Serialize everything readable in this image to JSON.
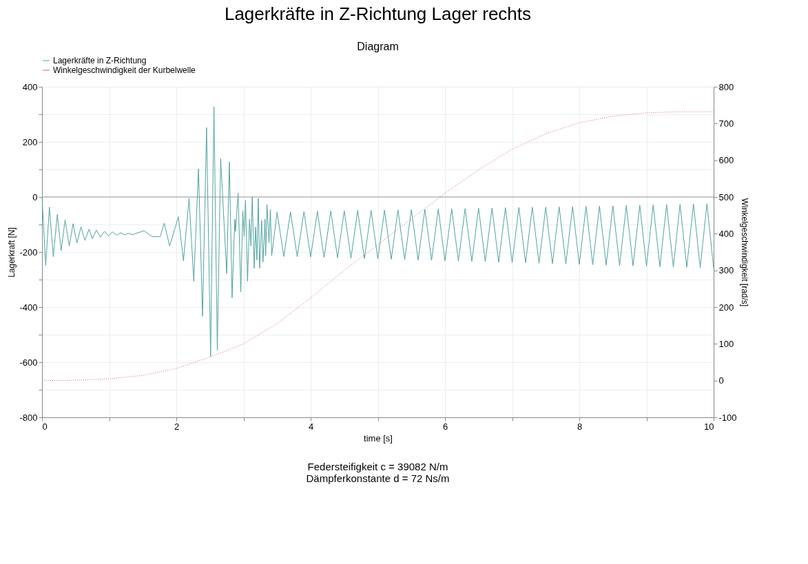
{
  "chart_data": {
    "type": "line",
    "title": "Lagerkräfte in Z-Richtung Lager rechts",
    "subtitle": "Diagram",
    "xlabel": "time [s]",
    "ylabel": "Lagerkraft [N]",
    "y2label": "Winkelgeschwindigkeit [rad/s]",
    "annotations": [
      "Federsteifigkeit c = 39082 N/m",
      "Dämpferkonstante d = 72 Ns/m"
    ],
    "xlim": [
      0,
      10
    ],
    "xticks": [
      0,
      {
        "value": 1,
        "label": null
      },
      2,
      {
        "value": 3,
        "label": null
      },
      4,
      {
        "value": 5,
        "label": null
      },
      6,
      {
        "value": 7,
        "label": null
      },
      8,
      {
        "value": 9,
        "label": null
      },
      10
    ],
    "ylim": [
      -800,
      400
    ],
    "yticks": [
      -800,
      {
        "value": -700,
        "label": null
      },
      -600,
      {
        "value": -500,
        "label": null
      },
      -400,
      {
        "value": -300,
        "label": null
      },
      -200,
      {
        "value": -100,
        "label": null
      },
      0,
      {
        "value": 100,
        "label": null
      },
      200,
      {
        "value": 300,
        "label": null
      },
      400
    ],
    "y2lim": [
      -100,
      800
    ],
    "y2ticks": [
      -100,
      0,
      100,
      200,
      300,
      400,
      500,
      600,
      700,
      800
    ],
    "grid": true,
    "legend": "top left",
    "marker": "none",
    "ref_lines": [
      {
        "axis": "y",
        "value": 0,
        "color": "#999999",
        "line_style": "solid"
      }
    ],
    "series": [
      {
        "name": "Lagerkräfte in Z-Richtung",
        "color": "#4fa3a0",
        "line_style": "solid",
        "x": [
          0,
          0.055,
          0.11,
          0.168,
          0.228,
          0.285,
          0.343,
          0.405,
          0.463,
          0.52,
          0.58,
          0.64,
          0.7,
          0.75,
          0.81,
          0.87,
          0.93,
          0.99,
          1.05,
          1.11,
          1.17,
          1.23,
          1.29,
          1.35,
          1.4,
          1.52,
          1.64,
          1.76,
          1.82,
          1.9,
          1.96,
          2.03,
          2.106,
          2.19,
          2.26,
          2.33,
          2.39,
          2.45,
          2.51,
          2.56,
          2.61,
          2.66,
          2.75,
          2.79,
          2.83,
          2.87,
          2.88,
          2.92,
          2.96,
          2.99,
          3.01,
          3.03,
          3.06,
          3.09,
          3.11,
          3.13,
          3.16,
          3.18,
          3.2,
          3.22,
          3.24,
          3.27,
          3.29,
          3.32,
          3.33,
          3.35,
          3.38,
          3.4,
          3.42,
          3.5,
          3.6,
          3.7,
          3.8,
          3.9,
          4.0,
          4.1,
          4.2,
          4.3,
          4.4,
          4.5,
          4.6,
          4.7,
          4.8,
          4.9,
          5.0,
          5.1,
          5.2,
          5.3,
          5.4,
          5.5,
          5.6,
          5.7,
          5.8,
          5.9,
          6.0,
          6.1,
          6.2,
          6.3,
          6.4,
          6.5,
          6.6,
          6.7,
          6.8,
          6.9,
          7.0,
          7.1,
          7.2,
          7.3,
          7.4,
          7.5,
          7.6,
          7.7,
          7.8,
          7.9,
          8.0,
          8.1,
          8.2,
          8.3,
          8.4,
          8.5,
          8.6,
          8.7,
          8.8,
          8.9,
          9.0,
          9.1,
          9.2,
          9.3,
          9.4,
          9.5,
          9.6,
          9.7,
          9.8,
          9.9,
          10.0
        ],
        "values": [
          0,
          -248,
          -37,
          -217,
          -63,
          -195,
          -84,
          -178,
          -97,
          -167,
          -109,
          -158,
          -117,
          -151,
          -120,
          -146,
          -125,
          -141,
          -127,
          -139,
          -130,
          -137,
          -132,
          -137,
          -132,
          -123,
          -144,
          -144,
          -95,
          -178,
          -130,
          -72,
          -232,
          -5,
          -306,
          102,
          -433,
          252,
          -579,
          327,
          -556,
          139,
          -278,
          127,
          -366,
          -81,
          -125,
          14,
          -345,
          -51,
          -144,
          -12,
          -306,
          -81,
          -178,
          0,
          -259,
          -109,
          -229,
          -5,
          -259,
          -86,
          -236,
          -81,
          -213,
          -28,
          -167,
          -46,
          -213,
          -55,
          -216,
          -54,
          -217,
          -53,
          -218,
          -52,
          -220,
          -51,
          -221,
          -50,
          -222,
          -49,
          -224,
          -49,
          -225,
          -48,
          -226,
          -47,
          -228,
          -46,
          -229,
          -45,
          -230,
          -44,
          -232,
          -43,
          -233,
          -42,
          -234,
          -41,
          -235,
          -40,
          -237,
          -39,
          -238,
          -38,
          -239,
          -37,
          -241,
          -37,
          -242,
          -36,
          -243,
          -35,
          -245,
          -34,
          -246,
          -33,
          -247,
          -32,
          -249,
          -31,
          -250,
          -30,
          -251,
          -29,
          -253,
          -28,
          -254,
          -27,
          -255,
          -26,
          -257,
          -25,
          -258
        ]
      },
      {
        "name": "Winkelgeschwindigkeit der Kurbelwelle",
        "color": "#d9656f",
        "axis": "y2",
        "line_style": "dotted",
        "x": [
          0,
          0.5,
          1,
          1.5,
          2,
          2.5,
          3,
          3.5,
          4,
          4.5,
          5,
          5.5,
          6,
          6.5,
          7,
          7.5,
          8,
          8.5,
          9,
          9.5,
          10
        ],
        "values": [
          0,
          1,
          5,
          14,
          33,
          64,
          100,
          155,
          225,
          300,
          370,
          440,
          510,
          574,
          630,
          672,
          702,
          720,
          729,
          732,
          732
        ]
      }
    ]
  }
}
